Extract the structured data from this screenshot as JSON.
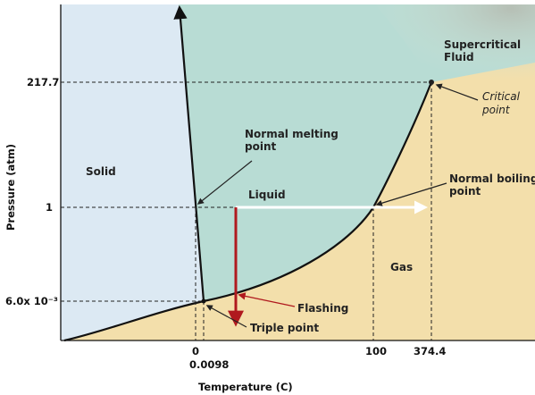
{
  "axes": {
    "x_title": "Temperature (C)",
    "y_title": "Pressure (atm)",
    "x_ticks": [
      "0",
      "0.0098",
      "100",
      "374.4"
    ],
    "y_ticks": [
      "217.7",
      "1",
      "6.0x 10⁻³"
    ]
  },
  "regions": {
    "solid": "Solid",
    "liquid": "Liquid",
    "gas": "Gas",
    "supercritical_line1": "Supercritical",
    "supercritical_line2": "Fluid"
  },
  "annotations": {
    "normal_melting_line1": "Normal melting",
    "normal_melting_line2": "point",
    "normal_boiling_line1": "Normal boiling",
    "normal_boiling_line2": "point",
    "critical_line1": "Critical",
    "critical_line2": "point",
    "flashing": "Flashing",
    "triple_point": "Triple point"
  },
  "colors": {
    "solid_region": "#dce9f3",
    "liquid_region": "#b8dcd4",
    "gas_region": "#f3dfab",
    "supercritical_region": "#c9d5c8",
    "flashing_arrow": "#b0191e",
    "heating_arrow": "#ffffff"
  }
}
